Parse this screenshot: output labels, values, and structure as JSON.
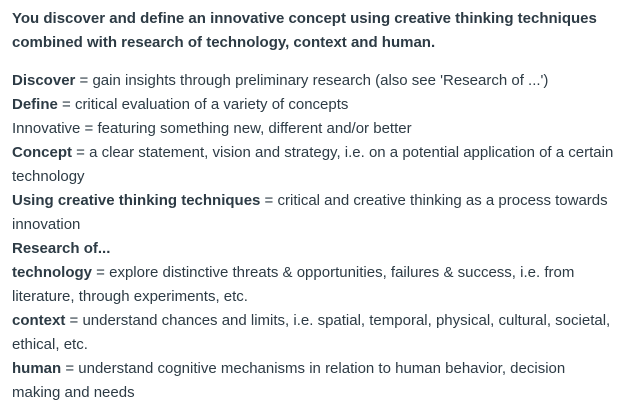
{
  "intro": "You discover and define an innovative concept using creative thinking techniques combined with research of technology, context and human.",
  "definitions": [
    {
      "term": "Discover",
      "text": " = gain insights through preliminary research (also see 'Research of ...')"
    },
    {
      "term": "Define",
      "text": " = critical evaluation of a variety of concepts"
    },
    {
      "term": "Innovative",
      "text": " = featuring something new, different and/or better"
    },
    {
      "term": "Concept",
      "text": " = a clear statement, vision and strategy, i.e. on a potential application of a certain technology"
    },
    {
      "term": "Using creative thinking techniques",
      "text": " = critical and creative thinking as a process towards innovation"
    },
    {
      "term": "Research of...",
      "text": ""
    },
    {
      "term": "technology",
      "text": " = explore distinctive threats & opportunities, failures & success, i.e. from literature, through experiments, etc."
    },
    {
      "term": "context",
      "text": " = understand chances and limits, i.e. spatial, temporal, physical, cultural, societal, ethical, etc."
    },
    {
      "term": "human",
      "text": " = understand cognitive mechanisms in relation to human behavior, decision making and needs"
    }
  ]
}
